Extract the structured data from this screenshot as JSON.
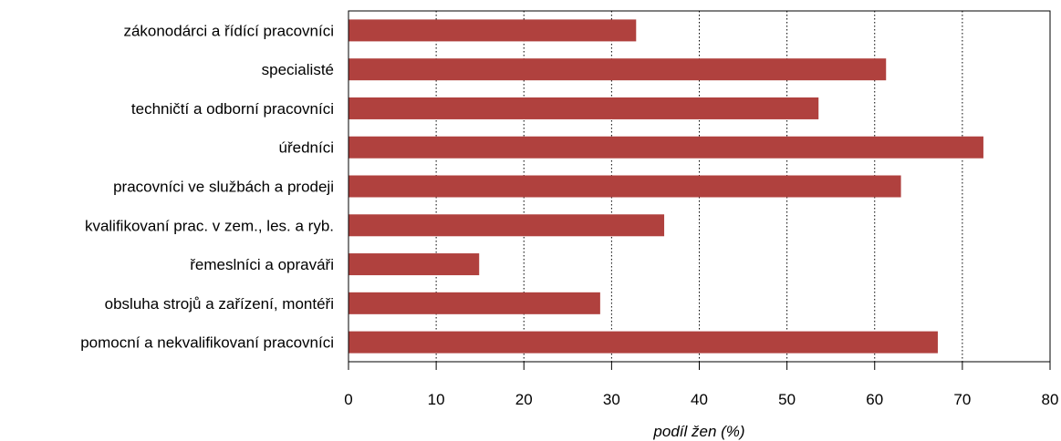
{
  "chart_data": {
    "type": "bar",
    "orientation": "horizontal",
    "categories": [
      "zákonodárci a řídící pracovníci",
      "specialisté",
      "techničtí a odborní pracovníci",
      "úředníci",
      "pracovníci ve službách a prodeji",
      "kvalifikovaní prac. v zem., les. a ryb.",
      "řemeslníci a opraváři",
      "obsluha strojů a zařízení, montéři",
      "pomocní a nekvalifikovaní pracovníci"
    ],
    "values": [
      32.8,
      61.3,
      53.6,
      72.4,
      63.0,
      36.0,
      14.9,
      28.7,
      67.2
    ],
    "xlim": [
      0,
      80
    ],
    "xticks": [
      "0",
      "10",
      "20",
      "30",
      "40",
      "50",
      "60",
      "70",
      "80"
    ],
    "xlabel": "podíl žen (%)",
    "ylabel": "",
    "title": "",
    "grid": "vertical dotted",
    "bar_color": "#b0413e"
  }
}
